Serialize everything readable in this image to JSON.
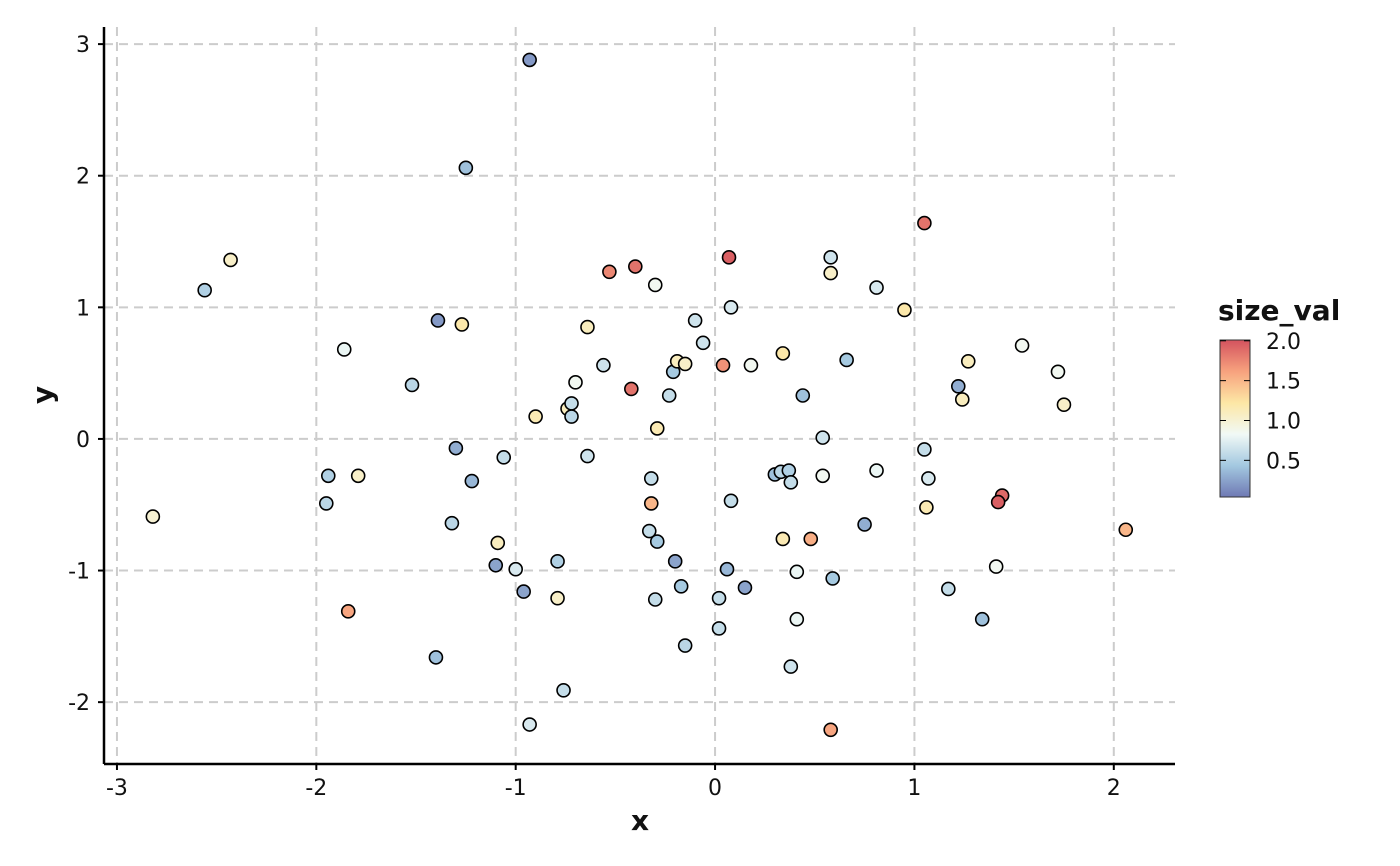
{
  "chart_data": {
    "type": "scatter",
    "x_label": "x",
    "y_label": "y",
    "x": [
      -0.93,
      -1.25,
      -2.43,
      -2.56,
      -1.39,
      -1.27,
      -1.86,
      -1.52,
      -2.82,
      -1.94,
      -1.95,
      -1.79,
      -1.84,
      -1.4,
      -1.3,
      -1.22,
      -1.32,
      -1.06,
      -1.09,
      -1.1,
      -1.0,
      -0.96,
      -0.93,
      -0.9,
      -0.79,
      -0.79,
      -0.76,
      -0.74,
      -0.72,
      -0.72,
      -0.7,
      -0.64,
      -0.64,
      -0.56,
      -0.53,
      -0.4,
      -0.42,
      -0.3,
      -0.32,
      -0.32,
      -0.33,
      -0.29,
      -0.29,
      -0.3,
      -0.23,
      -0.21,
      -0.19,
      -0.15,
      -0.2,
      -0.17,
      -0.15,
      -0.1,
      -0.06,
      0.07,
      0.08,
      0.04,
      0.08,
      0.06,
      0.02,
      0.02,
      0.15,
      0.18,
      0.3,
      0.33,
      0.37,
      0.38,
      0.34,
      0.34,
      0.48,
      0.41,
      0.41,
      0.38,
      0.44,
      0.54,
      0.54,
      0.59,
      0.58,
      0.58,
      0.58,
      0.66,
      0.75,
      0.81,
      0.81,
      0.95,
      1.05,
      1.05,
      1.07,
      1.06,
      1.17,
      1.22,
      1.24,
      1.27,
      1.34,
      1.41,
      1.44,
      1.42,
      1.54,
      1.72,
      1.75,
      2.06
    ],
    "y": [
      2.88,
      2.06,
      1.36,
      1.13,
      0.9,
      0.87,
      0.68,
      0.41,
      -0.59,
      -0.28,
      -0.49,
      -0.28,
      -1.31,
      -1.66,
      -0.07,
      -0.32,
      -0.64,
      -0.14,
      -0.79,
      -0.96,
      -0.99,
      -1.16,
      -2.17,
      0.17,
      -0.93,
      -1.21,
      -1.91,
      0.23,
      0.27,
      0.17,
      0.43,
      -0.13,
      0.85,
      0.56,
      1.27,
      1.31,
      0.38,
      1.17,
      -0.3,
      -0.49,
      -0.7,
      -0.78,
      0.08,
      -1.22,
      0.33,
      0.51,
      0.59,
      0.57,
      -0.93,
      -1.12,
      -1.57,
      0.9,
      0.73,
      1.38,
      1.0,
      0.56,
      -0.47,
      -0.99,
      -1.21,
      -1.44,
      -1.13,
      0.56,
      -0.27,
      -0.25,
      -0.24,
      -0.33,
      0.65,
      -0.76,
      -0.76,
      -1.01,
      -1.37,
      -1.73,
      0.33,
      0.01,
      -0.28,
      -1.06,
      -2.21,
      1.38,
      1.26,
      0.6,
      -0.65,
      1.15,
      -0.24,
      0.98,
      1.64,
      -0.08,
      -0.3,
      -0.52,
      -1.14,
      0.4,
      0.3,
      0.59,
      -1.37,
      -0.97,
      -0.43,
      -0.48,
      0.71,
      0.51,
      0.26,
      -0.69
    ],
    "color_values": [
      0.2,
      0.4,
      1.05,
      0.5,
      0.2,
      1.2,
      0.8,
      0.55,
      1.0,
      0.5,
      0.55,
      1.05,
      1.6,
      0.4,
      0.3,
      0.35,
      0.55,
      0.6,
      1.1,
      0.25,
      0.7,
      0.25,
      0.7,
      1.15,
      0.5,
      1.05,
      0.6,
      1.1,
      0.6,
      0.55,
      0.85,
      0.65,
      1.1,
      0.65,
      1.75,
      1.85,
      1.85,
      0.85,
      0.6,
      1.5,
      0.6,
      0.45,
      1.15,
      0.6,
      0.6,
      0.45,
      1.1,
      1.05,
      0.25,
      0.45,
      0.55,
      0.65,
      0.65,
      1.95,
      0.7,
      1.7,
      0.6,
      0.35,
      0.6,
      0.6,
      0.25,
      0.85,
      0.4,
      0.55,
      0.5,
      0.6,
      1.2,
      1.15,
      1.55,
      0.8,
      0.8,
      0.65,
      0.4,
      0.65,
      0.85,
      0.45,
      1.6,
      0.65,
      1.05,
      0.45,
      0.3,
      0.7,
      0.8,
      1.2,
      1.85,
      0.6,
      0.7,
      1.15,
      0.6,
      0.3,
      1.1,
      1.1,
      0.4,
      0.85,
      1.9,
      1.95,
      0.85,
      0.85,
      1.05,
      1.5
    ],
    "xlim": [
      -3.065,
      2.307
    ],
    "ylim": [
      -2.47,
      3.13
    ],
    "xticks": [
      -3,
      -2,
      -1,
      0,
      1,
      2
    ],
    "yticks": [
      -2,
      -1,
      0,
      1,
      2,
      3
    ],
    "grid": true,
    "colorbar": {
      "title": "size_val",
      "lim": [
        0.04,
        2.01
      ],
      "ticks": [
        0.5,
        {
          "value": 1,
          "label": "1.0"
        },
        1.5,
        {
          "value": 2,
          "label": "2.0"
        }
      ],
      "colors": [
        "#6f79b4",
        "#a3c8e0",
        "#f1f9f6",
        "#fde7a5",
        "#f7a27e",
        "#d4535e"
      ]
    }
  }
}
